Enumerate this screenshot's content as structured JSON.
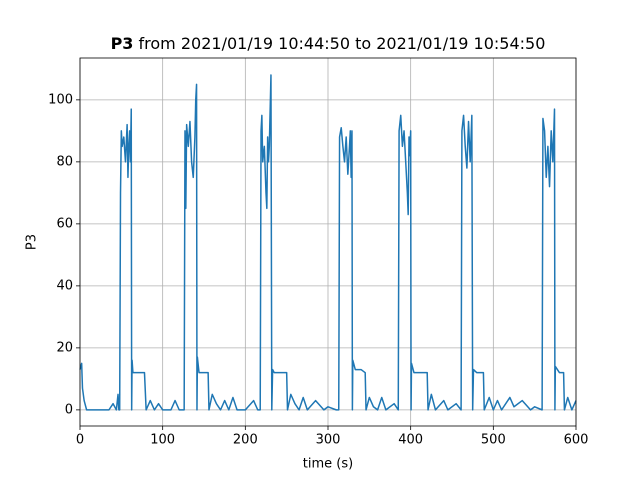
{
  "chart_data": {
    "type": "line",
    "title": {
      "bold": "P3",
      "text": "from 2021/01/19 10:44:50 to 2021/01/19 10:54:50"
    },
    "x_label": "time (s)",
    "y_label": "P3",
    "grid": true,
    "xlim": [
      0,
      600
    ],
    "ylim": [
      -5.2,
      113.5
    ],
    "xticks": [
      0,
      100,
      200,
      300,
      400,
      500,
      600
    ],
    "yticks": [
      0,
      20,
      40,
      60,
      80,
      100
    ],
    "x": [
      0,
      2,
      3,
      5,
      8,
      15,
      25,
      35,
      40,
      44,
      46,
      47,
      48,
      49,
      50,
      51,
      53,
      55,
      57,
      58,
      59,
      60,
      61,
      62,
      62.5,
      63,
      64,
      70,
      78,
      80,
      85,
      90,
      95,
      100,
      110,
      115,
      120,
      126,
      127,
      128,
      129,
      131,
      133,
      135,
      137,
      139,
      140,
      141,
      141.5,
      142,
      144,
      155,
      156,
      160,
      165,
      170,
      175,
      180,
      185,
      190,
      200,
      210,
      215,
      218,
      219,
      220,
      221,
      223,
      225,
      226,
      227,
      228,
      229,
      231,
      232,
      233,
      235,
      245,
      250,
      251,
      255,
      260,
      265,
      270,
      275,
      285,
      295,
      300,
      310,
      313,
      314,
      316,
      318,
      320,
      322,
      324,
      326,
      327,
      328,
      329,
      329.5,
      330,
      333,
      340,
      345,
      346,
      350,
      355,
      360,
      365,
      370,
      380,
      385,
      386,
      388,
      390,
      392,
      394,
      396,
      397,
      398,
      399,
      400,
      400.5,
      401,
      404,
      415,
      420,
      421,
      425,
      430,
      440,
      445,
      455,
      461,
      462,
      464,
      466,
      468,
      470,
      472,
      474,
      475,
      476,
      480,
      488,
      489,
      495,
      500,
      505,
      510,
      520,
      525,
      535,
      545,
      550,
      559,
      560,
      562,
      564,
      566,
      568,
      570,
      572,
      574,
      574.5,
      575,
      580,
      585,
      586,
      590,
      595,
      600
    ],
    "series": [
      {
        "name": "P3",
        "color": "#1f77b4",
        "values": [
          13,
          15,
          7,
          3,
          0,
          0,
          0,
          0,
          2,
          0,
          5,
          0,
          0,
          70,
          90,
          85,
          88,
          80,
          92,
          75,
          85,
          90,
          80,
          97,
          0,
          16,
          12,
          12,
          12,
          0,
          3,
          0,
          2,
          0,
          0,
          3,
          0,
          0,
          90,
          65,
          92,
          85,
          93,
          80,
          75,
          88,
          100,
          105,
          0,
          17,
          12,
          12,
          0,
          5,
          2,
          0,
          3,
          0,
          4,
          0,
          0,
          3,
          0,
          0,
          90,
          95,
          80,
          85,
          70,
          65,
          88,
          80,
          85,
          108,
          0,
          13,
          12,
          12,
          12,
          0,
          5,
          2,
          0,
          4,
          0,
          3,
          0,
          1,
          0,
          0,
          88,
          91,
          85,
          80,
          88,
          76,
          85,
          90,
          75,
          90,
          0,
          16,
          13,
          13,
          12,
          0,
          4,
          1,
          0,
          4,
          0,
          2,
          0,
          90,
          95,
          85,
          90,
          80,
          70,
          63,
          88,
          82,
          90,
          0,
          15,
          12,
          12,
          12,
          0,
          5,
          0,
          3,
          0,
          2,
          0,
          90,
          95,
          85,
          78,
          93,
          80,
          95,
          0,
          13,
          12,
          12,
          0,
          4,
          0,
          3,
          0,
          4,
          1,
          3,
          0,
          1,
          0,
          94,
          90,
          75,
          85,
          72,
          90,
          80,
          97,
          0,
          14,
          12,
          12,
          0,
          4,
          0,
          3
        ]
      }
    ]
  }
}
